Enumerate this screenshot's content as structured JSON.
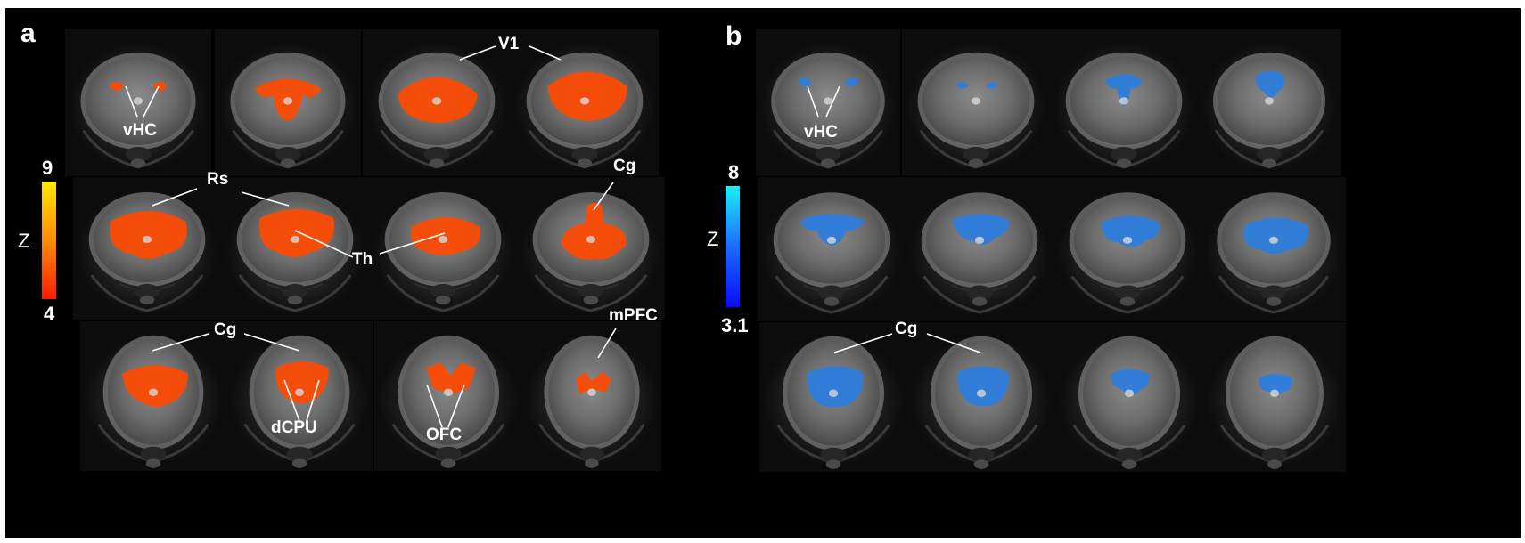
{
  "panels": {
    "a": {
      "letter": "a",
      "colorbar": {
        "max": "9",
        "min": "4",
        "axis_label": "Z",
        "gradient": [
          "#ff1a00",
          "#ff8c00",
          "#ffe800"
        ]
      },
      "activation_color": "#ff4a00",
      "labels": {
        "vHC": "vHC",
        "V1": "V1",
        "Rs": "Rs",
        "Th": "Th",
        "Cg_row2": "Cg",
        "Cg_row3": "Cg",
        "mPFC": "mPFC",
        "dCPU": "dCPU",
        "OFC": "OFC"
      }
    },
    "b": {
      "letter": "b",
      "colorbar": {
        "max": "8",
        "min": "3.1",
        "axis_label": "Z",
        "gradient": [
          "#0a0aff",
          "#1a6cff",
          "#19f0ff"
        ]
      },
      "activation_color": "#2a7de0",
      "labels": {
        "vHC": "vHC",
        "Cg": "Cg"
      }
    }
  }
}
